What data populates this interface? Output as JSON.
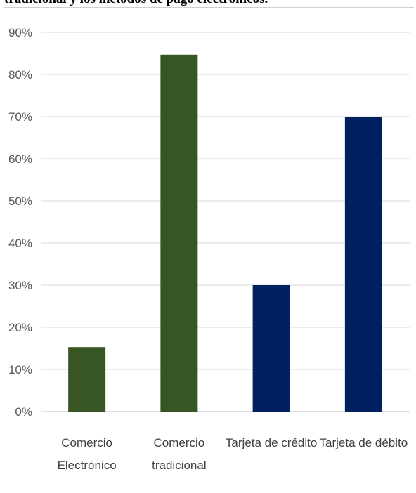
{
  "caption": "tradicional y los métodos de pago electrónicos.",
  "chart_data": {
    "type": "bar",
    "categories": [
      [
        "Comercio",
        "Electrónico"
      ],
      [
        "Comercio",
        "tradicional"
      ],
      [
        "Tarjeta de crédito"
      ],
      [
        "Tarjeta de débito"
      ]
    ],
    "values": [
      15.3,
      84.7,
      30,
      70
    ],
    "bar_colors": [
      "#375623",
      "#375623",
      "#002060",
      "#002060"
    ],
    "ylim": [
      0,
      90
    ],
    "yticks": [
      "0%",
      "10%",
      "20%",
      "30%",
      "40%",
      "50%",
      "60%",
      "70%",
      "80%",
      "90%"
    ],
    "grid": true,
    "legend": "none"
  }
}
